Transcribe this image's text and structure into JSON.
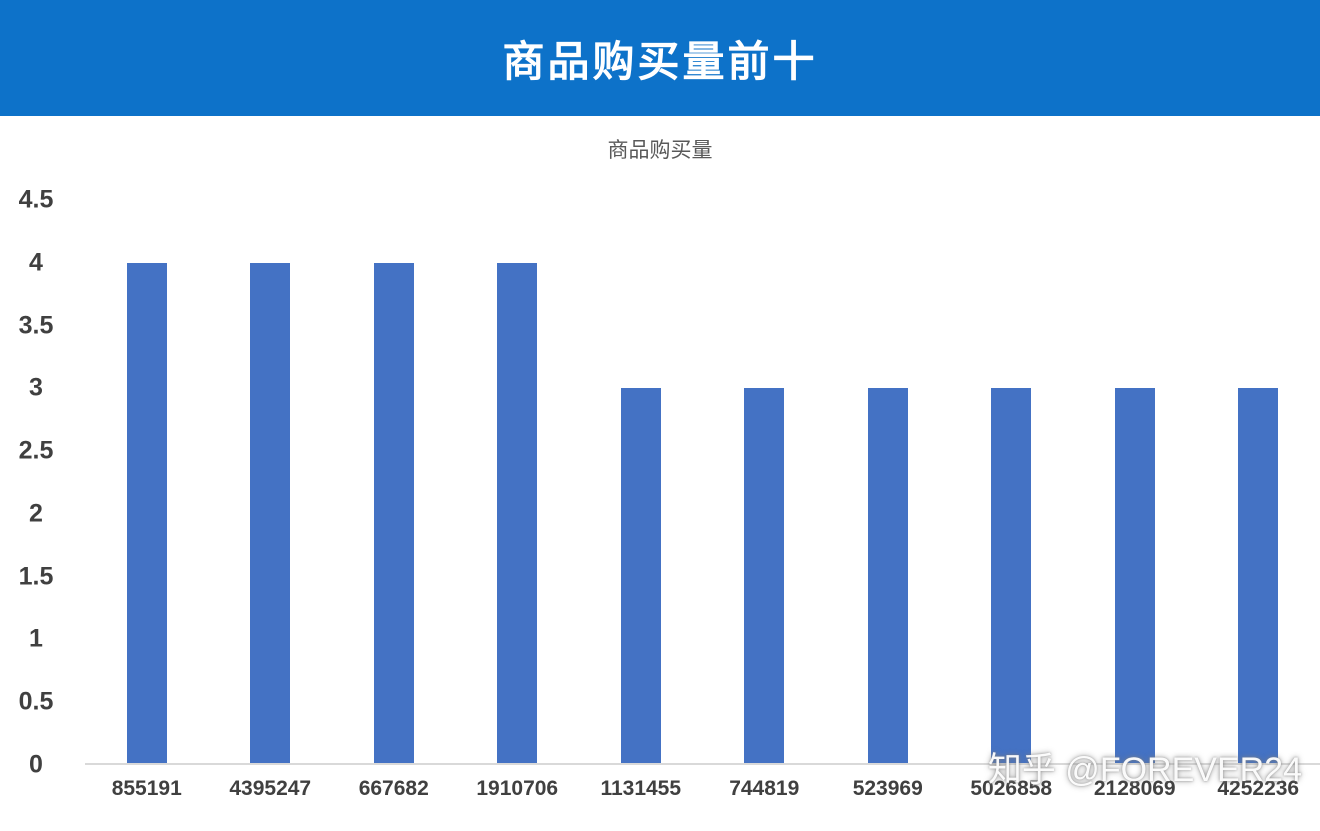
{
  "header": {
    "title": "商品购买量前十",
    "bg_color": "#0d72c9",
    "text_color": "#ffffff"
  },
  "chart_data": {
    "type": "bar",
    "title": "商品购买量",
    "categories": [
      "855191",
      "4395247",
      "667682",
      "1910706",
      "1131455",
      "744819",
      "523969",
      "5026858",
      "2128069",
      "4252236"
    ],
    "values": [
      4,
      4,
      4,
      4,
      3,
      3,
      3,
      3,
      3,
      3
    ],
    "xlabel": "",
    "ylabel": "",
    "ylim": [
      0,
      4.5
    ],
    "yticks": [
      4.5,
      4,
      3.5,
      3,
      2.5,
      2,
      1.5,
      1,
      0.5,
      0
    ],
    "bar_color": "#4472c4",
    "grid": false,
    "legend": "none"
  },
  "watermark": {
    "text": "知乎 @FOREVER24"
  }
}
